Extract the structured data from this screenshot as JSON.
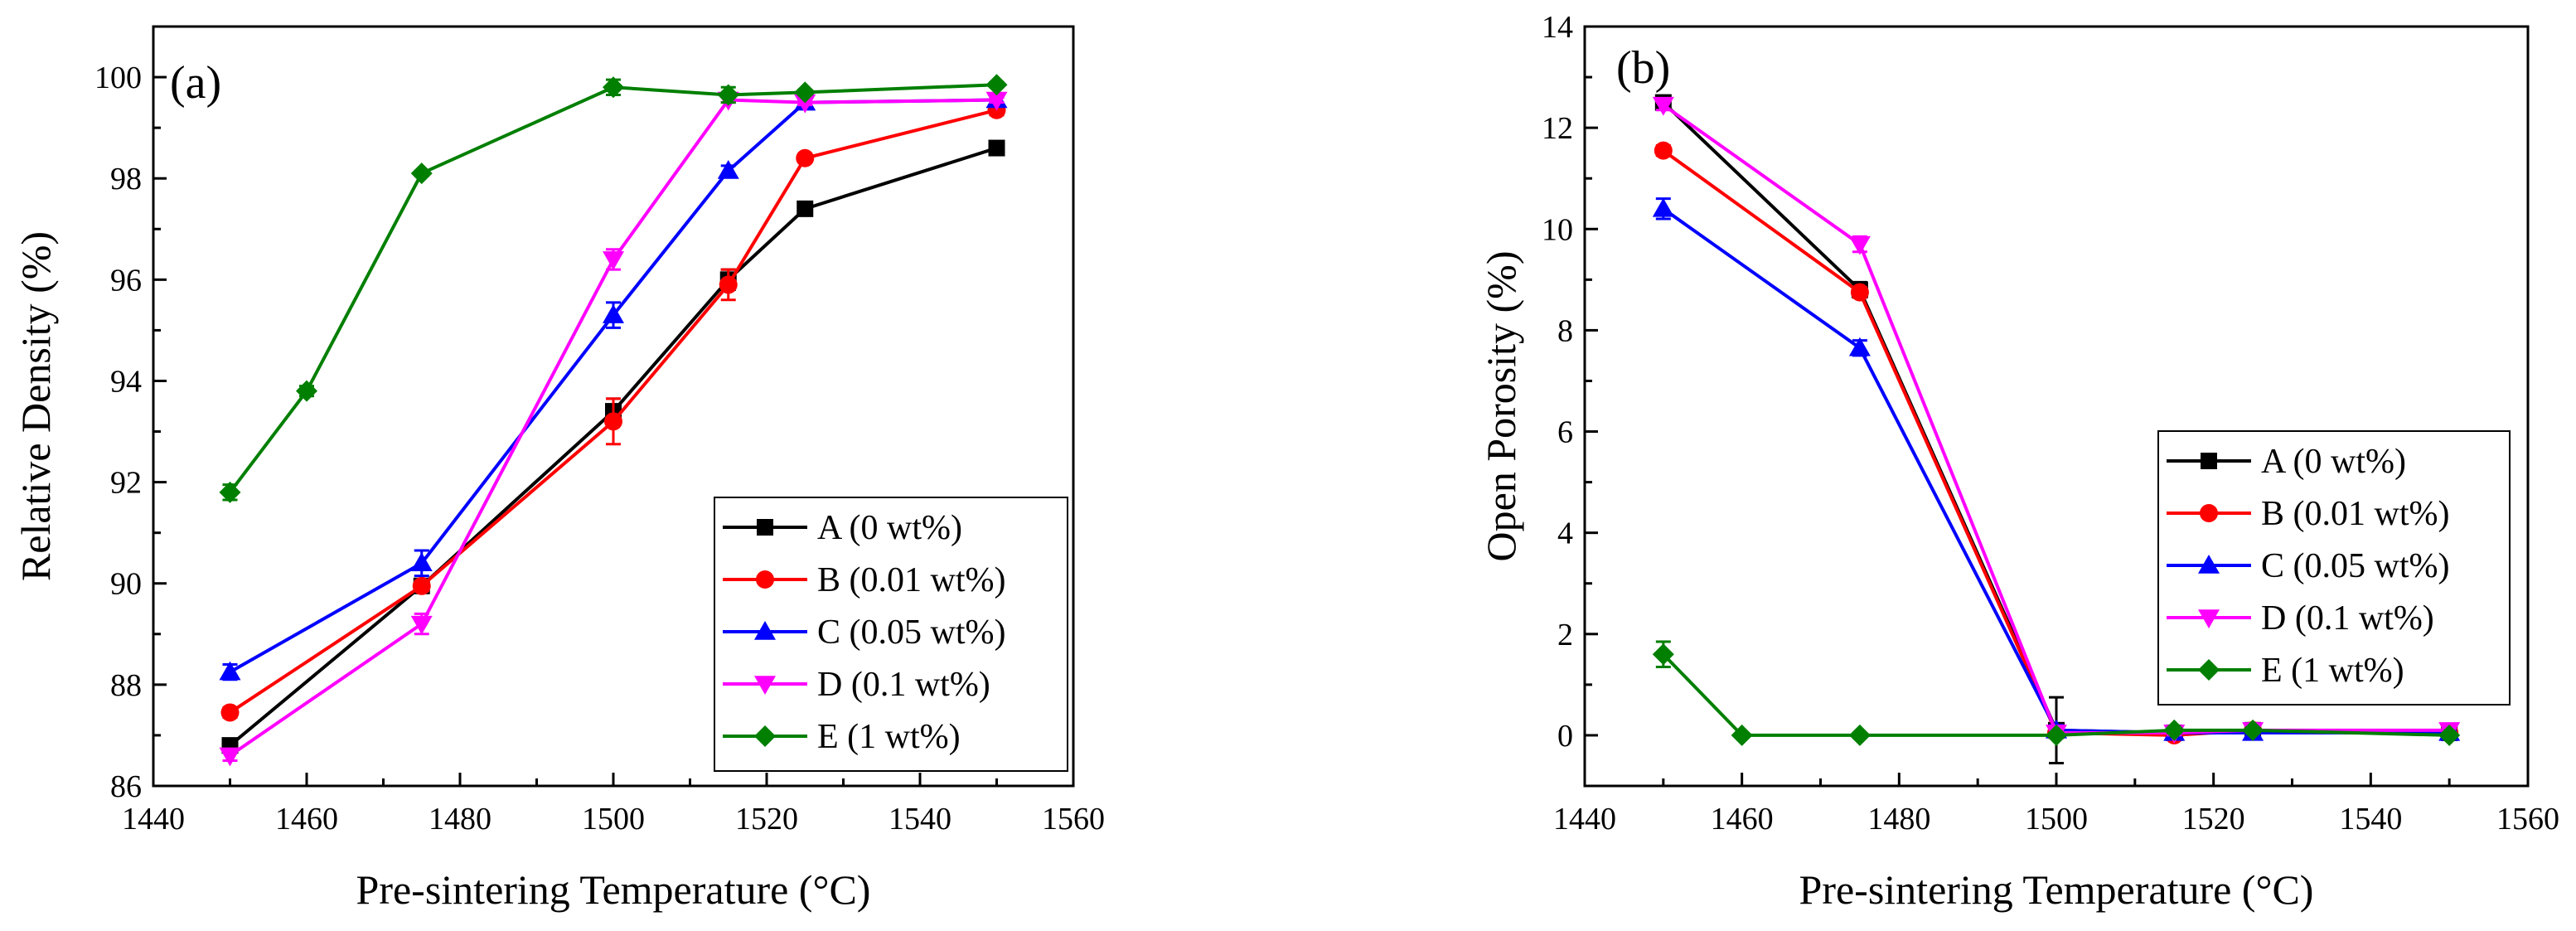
{
  "chart_data": [
    {
      "type": "line",
      "panel_label": "(a)",
      "xlabel": "Pre-sintering Temperature (°C)",
      "ylabel": "Relative Density (%)",
      "xlim": [
        1440,
        1560
      ],
      "ylim": [
        86,
        101
      ],
      "xticks": [
        1440,
        1460,
        1480,
        1500,
        1520,
        1540,
        1560
      ],
      "yticks": [
        86,
        88,
        90,
        92,
        94,
        96,
        98,
        100
      ],
      "legend_position": "bottom-right",
      "series": [
        {
          "name": "A (0 wt%)",
          "color": "#000000",
          "marker": "square",
          "x": [
            1450,
            1475,
            1500,
            1515,
            1525,
            1550
          ],
          "y": [
            86.8,
            89.95,
            93.4,
            96.0,
            97.4,
            98.6
          ],
          "err": [
            0.1,
            0.1,
            0.25,
            0.2,
            0.05,
            0.05
          ]
        },
        {
          "name": "B (0.01 wt%)",
          "color": "#ff0000",
          "marker": "circle",
          "x": [
            1450,
            1475,
            1500,
            1515,
            1525,
            1550
          ],
          "y": [
            87.45,
            89.95,
            93.2,
            95.9,
            98.4,
            99.35
          ],
          "err": [
            0.1,
            0.1,
            0.45,
            0.3,
            0.05,
            0.1
          ]
        },
        {
          "name": "C (0.05 wt%)",
          "color": "#0000ff",
          "marker": "triangle-up",
          "x": [
            1450,
            1475,
            1500,
            1515,
            1525,
            1550
          ],
          "y": [
            88.25,
            90.4,
            95.3,
            98.15,
            99.5,
            99.55
          ],
          "err": [
            0.15,
            0.25,
            0.25,
            0.1,
            0.1,
            0.05
          ]
        },
        {
          "name": "D (0.1 wt%)",
          "color": "#ff00ff",
          "marker": "triangle-down",
          "x": [
            1450,
            1475,
            1500,
            1515,
            1525,
            1550
          ],
          "y": [
            86.6,
            89.2,
            96.4,
            99.55,
            99.5,
            99.55
          ],
          "err": [
            0.1,
            0.2,
            0.2,
            0.05,
            0.05,
            0.05
          ]
        },
        {
          "name": "E (1 wt%)",
          "color": "#007f00",
          "marker": "diamond",
          "x": [
            1450,
            1460,
            1475,
            1500,
            1515,
            1525,
            1550
          ],
          "y": [
            91.8,
            93.8,
            98.1,
            99.8,
            99.65,
            99.7,
            99.85
          ],
          "err": [
            0.15,
            0.1,
            0.05,
            0.15,
            0.15,
            0.05,
            0.05
          ]
        }
      ]
    },
    {
      "type": "line",
      "panel_label": "(b)",
      "xlabel": "Pre-sintering Temperature (°C)",
      "ylabel": "Open Porosity (%)",
      "xlim": [
        1440,
        1560
      ],
      "ylim": [
        -1,
        14
      ],
      "xticks": [
        1440,
        1460,
        1480,
        1500,
        1520,
        1540,
        1560
      ],
      "yticks": [
        0,
        2,
        4,
        6,
        8,
        10,
        12,
        14
      ],
      "legend_position": "right-middle",
      "series": [
        {
          "name": "A (0 wt%)",
          "color": "#000000",
          "marker": "square",
          "x": [
            1450,
            1475,
            1500,
            1515,
            1525,
            1550
          ],
          "y": [
            12.5,
            8.8,
            0.1,
            0.05,
            0.1,
            0.05
          ],
          "err": [
            0.1,
            0.15,
            0.65,
            0.05,
            0.05,
            0.05
          ]
        },
        {
          "name": "B (0.01 wt%)",
          "color": "#ff0000",
          "marker": "circle",
          "x": [
            1450,
            1475,
            1500,
            1515,
            1525,
            1550
          ],
          "y": [
            11.55,
            8.75,
            0.05,
            0.0,
            0.1,
            0.05
          ],
          "err": [
            0.1,
            0.1,
            0.1,
            0.05,
            0.05,
            0.05
          ]
        },
        {
          "name": "C (0.05 wt%)",
          "color": "#0000ff",
          "marker": "triangle-up",
          "x": [
            1450,
            1475,
            1500,
            1515,
            1525,
            1550
          ],
          "y": [
            10.4,
            7.65,
            0.1,
            0.05,
            0.05,
            0.05
          ],
          "err": [
            0.2,
            0.15,
            0.1,
            0.05,
            0.05,
            0.05
          ]
        },
        {
          "name": "D (0.1 wt%)",
          "color": "#ff00ff",
          "marker": "triangle-down",
          "x": [
            1450,
            1475,
            1500,
            1515,
            1525,
            1550
          ],
          "y": [
            12.45,
            9.7,
            0.05,
            0.05,
            0.1,
            0.1
          ],
          "err": [
            0.1,
            0.15,
            0.05,
            0.05,
            0.05,
            0.05
          ]
        },
        {
          "name": "E (1 wt%)",
          "color": "#007f00",
          "marker": "diamond",
          "x": [
            1450,
            1460,
            1475,
            1500,
            1515,
            1525,
            1550
          ],
          "y": [
            1.6,
            0.0,
            0.0,
            0.0,
            0.1,
            0.1,
            0.0
          ],
          "err": [
            0.25,
            0.02,
            0.02,
            0.02,
            0.05,
            0.05,
            0.02
          ]
        }
      ]
    }
  ]
}
